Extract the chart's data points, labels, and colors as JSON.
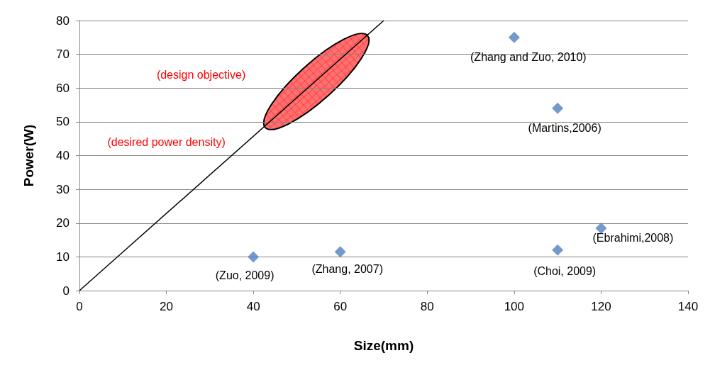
{
  "chart_data": {
    "type": "scatter",
    "xlabel": "Size(mm)",
    "ylabel": "Power(W)",
    "x": [
      40,
      60,
      100,
      110,
      110,
      120
    ],
    "series": [
      {
        "color": "#4f81bd",
        "marker": "diamond",
        "values": [
          10,
          11.5,
          75,
          54,
          12,
          18.5
        ]
      },
      {
        "type": "line",
        "color": "#000000",
        "marker": "none",
        "x": [
          0,
          70
        ],
        "values": [
          0,
          80
        ]
      }
    ],
    "annotations": [
      {
        "text": "(Zuo, 2009)",
        "x": 40,
        "y": 10
      },
      {
        "text": "(Zhang, 2007)",
        "x": 60,
        "y": 11.5
      },
      {
        "text": "(Zhang and Zuo, 2010)",
        "x": 100,
        "y": 75
      },
      {
        "text": "(Martins,2006)",
        "x": 110,
        "y": 54
      },
      {
        "text": "(Choi, 2009)",
        "x": 110,
        "y": 12
      },
      {
        "text": "(Ebrahimi,2008)",
        "x": 120,
        "y": 18.5
      },
      "(design objective)",
      "(desired power density)"
    ],
    "xlim": [
      0,
      140
    ],
    "xticks": [
      0,
      20,
      40,
      60,
      80,
      100,
      120,
      140
    ],
    "ylim": [
      0,
      80
    ],
    "yticks": [
      0,
      10,
      20,
      30,
      40,
      50,
      60,
      70,
      80
    ],
    "grid": "y"
  }
}
